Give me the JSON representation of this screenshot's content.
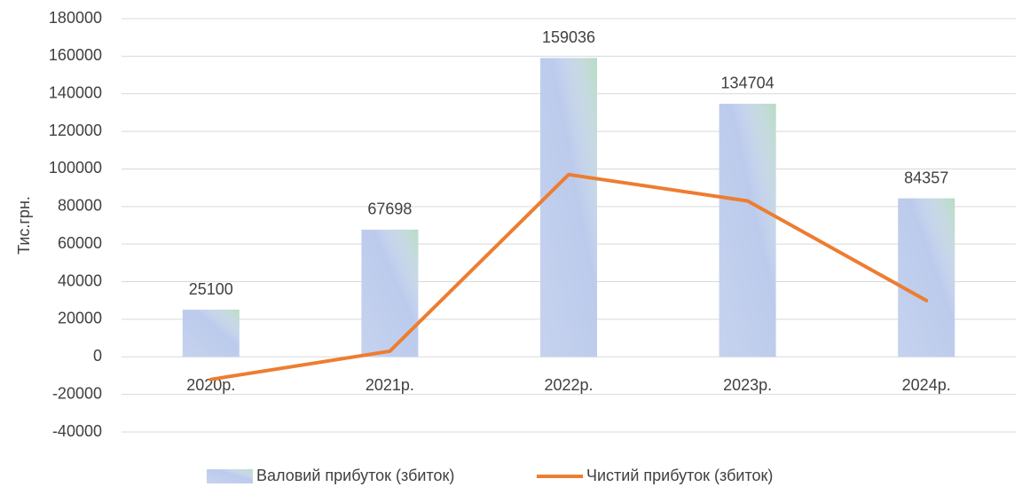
{
  "chart_data": {
    "type": "bar",
    "y_label": "Тис.грн.",
    "categories": [
      "2020р.",
      "2021р.",
      "2022р.",
      "2023р.",
      "2024р."
    ],
    "series": [
      {
        "name": "Валовий прибуток (збиток)",
        "type": "bar",
        "color": "#bccbec",
        "data_labels": true,
        "values": [
          25100,
          67698,
          159036,
          134704,
          84357
        ]
      },
      {
        "name": "Чистий прибуток (збиток)",
        "type": "line",
        "color": "#ed7d31",
        "data_labels": false,
        "values": [
          -12000,
          3000,
          97000,
          83000,
          30000
        ]
      }
    ],
    "ylim": [
      -40000,
      180000
    ],
    "yticks": [
      -40000,
      -20000,
      0,
      20000,
      40000,
      60000,
      80000,
      100000,
      120000,
      140000,
      160000,
      180000
    ],
    "grid": true,
    "legend": "bottom"
  }
}
